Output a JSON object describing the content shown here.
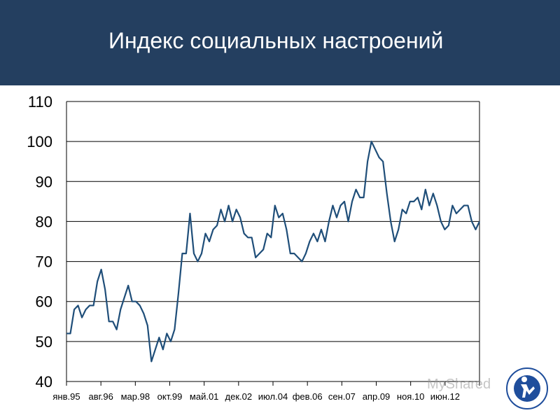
{
  "title": "Индекс социальных настроений",
  "watermark_text": "MyShared",
  "colors": {
    "header_bg": "#243f60",
    "line": "#1f4e79",
    "grid": "#000000"
  },
  "chart_data": {
    "type": "line",
    "title": "Индекс социальных настроений",
    "xlabel": "",
    "ylabel": "",
    "ylim": [
      40,
      110
    ],
    "yticks": [
      40,
      50,
      60,
      70,
      80,
      90,
      100,
      110
    ],
    "grid": true,
    "x_tick_labels": [
      "янв.95",
      "авг.96",
      "мар.98",
      "окт.99",
      "май.01",
      "дек.02",
      "июл.04",
      "фев.06",
      "сен.07",
      "апр.09",
      "ноя.10",
      "июн.12"
    ],
    "series": [
      {
        "values": [
          52,
          52,
          58,
          59,
          56,
          58,
          59,
          59,
          65,
          68,
          63,
          55,
          55,
          53,
          58,
          61,
          64,
          60,
          60,
          59,
          57,
          54,
          45,
          48,
          51,
          48,
          52,
          50,
          53,
          62,
          72,
          72,
          82,
          72,
          70,
          72,
          77,
          75,
          78,
          79,
          83,
          80,
          84,
          80,
          83,
          81,
          77,
          76,
          76,
          71,
          72,
          73,
          77,
          76,
          84,
          81,
          82,
          78,
          72,
          72,
          71,
          70,
          72,
          75,
          77,
          75,
          78,
          75,
          80,
          84,
          81,
          84,
          85,
          80,
          85,
          88,
          86,
          86,
          95,
          100,
          98,
          96,
          95,
          87,
          80,
          75,
          78,
          83,
          82,
          85,
          85,
          86,
          83,
          88,
          84,
          87,
          84,
          80,
          78,
          79,
          84,
          82,
          83,
          84,
          84,
          80,
          78,
          80
        ]
      }
    ]
  }
}
